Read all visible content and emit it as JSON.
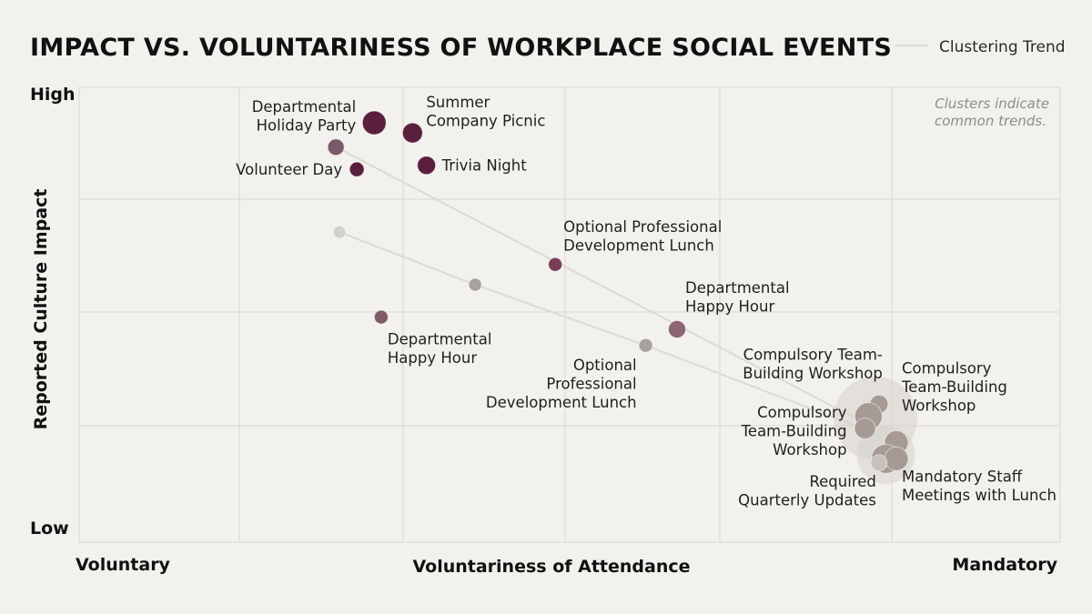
{
  "chart_data": {
    "type": "scatter",
    "title": "IMPACT VS. VOLUNTARINESS OF WORKPLACE SOCIAL EVENTS",
    "xlabel": "Voluntariness of Attendance",
    "ylabel": "Reported Culture Impact",
    "x_tick_labels": {
      "low": "Voluntary",
      "high": "Mandatory"
    },
    "y_tick_labels": {
      "low": "Low",
      "high": "High"
    },
    "xlim": [
      0,
      100
    ],
    "ylim": [
      0,
      100
    ],
    "grid": true,
    "legend": {
      "position": "top-right",
      "entries": [
        "Clustering Trend"
      ]
    },
    "annotation": [
      "Clusters indicate",
      "common trends."
    ],
    "colors": {
      "background": "#f3f1ed",
      "grid": "#d9d6d0",
      "trend": "#dcdad6",
      "cluster_halo": "#d6d2cc"
    },
    "points": [
      {
        "x": 25,
        "y": 100,
        "size": 13,
        "color": "#5a1f3c",
        "label": [
          "Departmental",
          "Holiday Party"
        ],
        "label_anchor": "end",
        "label_dx": -20,
        "label_dy": -12
      },
      {
        "x": 30.5,
        "y": 97.5,
        "size": 11,
        "color": "#5a1f3c",
        "label": [
          "Summer",
          "Company Picnic"
        ],
        "label_anchor": "start",
        "label_dx": 15,
        "label_dy": -28
      },
      {
        "x": 19.5,
        "y": 94,
        "size": 9,
        "color": "#7a5a69",
        "label": []
      },
      {
        "x": 32.5,
        "y": 89.5,
        "size": 10,
        "color": "#5a1f3c",
        "label": [
          "Trivia Night"
        ],
        "label_anchor": "start",
        "label_dx": 17,
        "label_dy": 6
      },
      {
        "x": 22.5,
        "y": 88.5,
        "size": 8,
        "color": "#5a1f3c",
        "label": [
          "Volunteer Day"
        ],
        "label_anchor": "end",
        "label_dx": -16,
        "label_dy": 6
      },
      {
        "x": 20,
        "y": 73,
        "size": 7,
        "color": "#d3d1cf",
        "label": []
      },
      {
        "x": 51,
        "y": 65,
        "size": 7.5,
        "color": "#7a3e58",
        "label": [
          "Optional Professional",
          "Development Lunch"
        ],
        "label_anchor": "start",
        "label_dx": 9,
        "label_dy": -36
      },
      {
        "x": 39.5,
        "y": 60,
        "size": 7,
        "color": "#a7a09c",
        "label": []
      },
      {
        "x": 26,
        "y": 52,
        "size": 7.5,
        "color": "#7d5a66",
        "label": [
          "Departmental",
          "Happy Hour"
        ],
        "label_anchor": "start",
        "label_dx": 7,
        "label_dy": 30
      },
      {
        "x": 68.5,
        "y": 49,
        "size": 9.5,
        "color": "#8c6577",
        "label": [
          "Departmental",
          "Happy Hour"
        ],
        "label_anchor": "start",
        "label_dx": 9,
        "label_dy": -40
      },
      {
        "x": 64,
        "y": 45,
        "size": 7.5,
        "color": "#a8a09c",
        "label": [
          "Optional",
          "Professional",
          "Development Lunch"
        ],
        "label_anchor": "end",
        "label_dx": -10,
        "label_dy": 27
      },
      {
        "x": 97.5,
        "y": 30.5,
        "size": 10,
        "color": "#a69a95",
        "label": [
          "Compulsory Team-",
          "Building Workshop"
        ],
        "label_anchor": "end",
        "label_dx": 4,
        "label_dy": -49
      },
      {
        "x": 96,
        "y": 27.5,
        "size": 15,
        "color": "#a69a95",
        "label": []
      },
      {
        "x": 95.5,
        "y": 24.5,
        "size": 11.5,
        "color": "#a69a95",
        "label": [
          "Compulsory",
          "Team-Building",
          "Workshop"
        ],
        "label_anchor": "end",
        "label_dx": -20,
        "label_dy": -12
      },
      {
        "x": 100,
        "y": 21,
        "size": 13,
        "color": "#a69a95",
        "label": [
          "Compulsory",
          "Team-Building",
          "Workshop"
        ],
        "label_anchor": "start",
        "label_dx": 6,
        "label_dy": -76
      },
      {
        "x": 98.5,
        "y": 17,
        "size": 16,
        "color": "#a69a95",
        "label": []
      },
      {
        "x": 100,
        "y": 17,
        "size": 13,
        "color": "#a69a95",
        "label": [
          "Mandatory Staff",
          "Meetings with Lunch"
        ],
        "label_anchor": "start",
        "label_dx": 6,
        "label_dy": 25
      },
      {
        "x": 97.5,
        "y": 16,
        "size": 9,
        "color": "#c7c1bc",
        "label": [
          "Required",
          "Quarterly Updates"
        ],
        "label_anchor": "end",
        "label_dx": -3,
        "label_dy": 26
      }
    ],
    "clusters": [
      {
        "x": 97,
        "y": 27,
        "radius": 46
      },
      {
        "x": 98.5,
        "y": 18,
        "radius": 32
      }
    ],
    "trend_lines": [
      [
        {
          "x": 19.5,
          "y": 94
        },
        {
          "x": 97.5,
          "y": 24
        }
      ],
      [
        {
          "x": 20,
          "y": 73
        },
        {
          "x": 39.5,
          "y": 60
        },
        {
          "x": 64,
          "y": 45
        },
        {
          "x": 97.5,
          "y": 23
        }
      ]
    ]
  }
}
